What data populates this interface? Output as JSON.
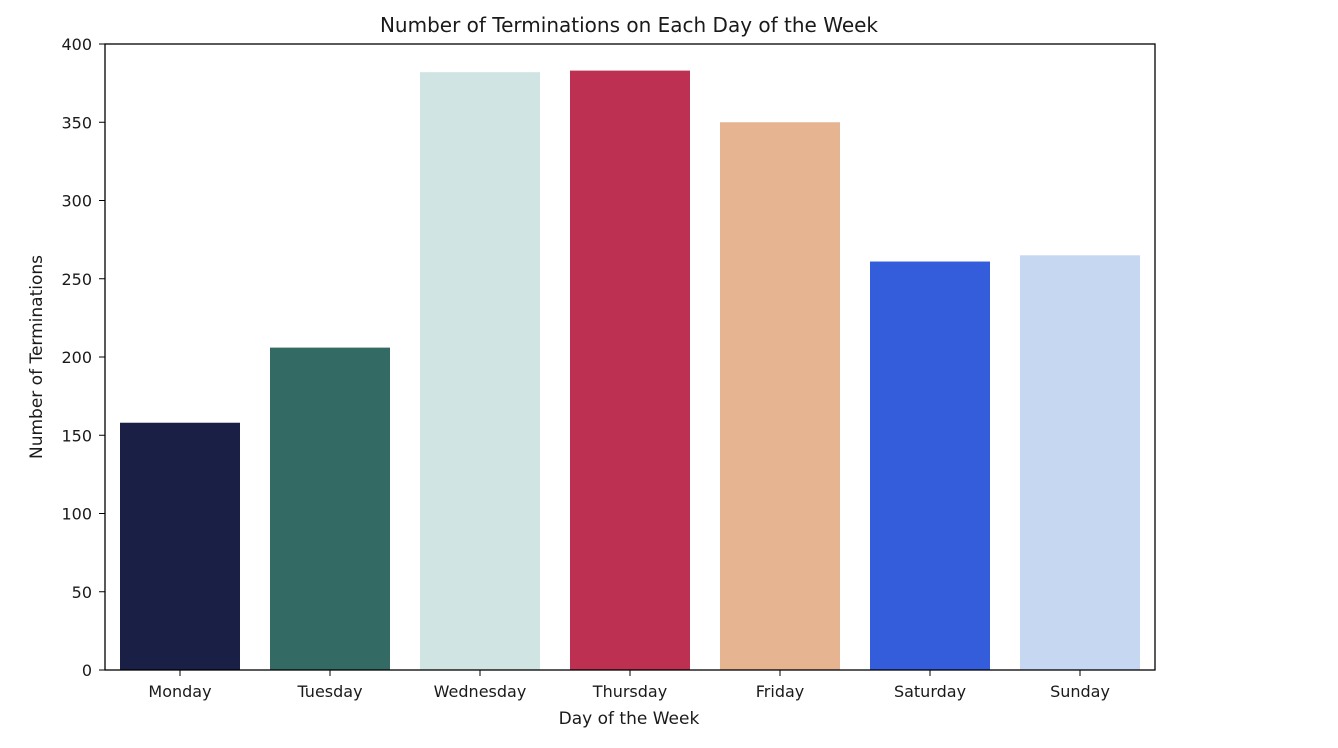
{
  "chart_data": {
    "type": "bar",
    "title": "Number of Terminations on Each Day of the Week",
    "xlabel": "Day of the Week",
    "ylabel": "Number of Terminations",
    "categories": [
      "Monday",
      "Tuesday",
      "Wednesday",
      "Thursday",
      "Friday",
      "Saturday",
      "Sunday"
    ],
    "values": [
      158,
      206,
      382,
      383,
      350,
      261,
      265
    ],
    "colors": [
      "#1a2045",
      "#336b64",
      "#d1e4e4",
      "#bd3052",
      "#e6b491",
      "#335ddb",
      "#c6d7f2"
    ],
    "ylim": [
      0,
      400
    ],
    "yticks": [
      0,
      50,
      100,
      150,
      200,
      250,
      300,
      350,
      400
    ],
    "grid": false,
    "legend": "none"
  }
}
